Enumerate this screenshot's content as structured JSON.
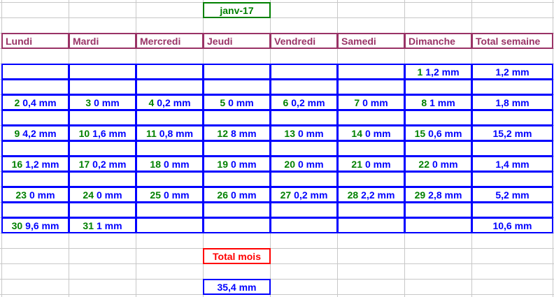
{
  "month": "janv-17",
  "headers": [
    "Lundi",
    "Mardi",
    "Mercredi",
    "Jeudi",
    "Vendredi",
    "Samedi",
    "Dimanche",
    "Total semaine"
  ],
  "weeks": [
    {
      "days": [
        null,
        null,
        null,
        null,
        null,
        null,
        {
          "day": "1",
          "value": "1,2 mm"
        }
      ],
      "total": "1,2 mm"
    },
    {
      "days": [
        {
          "day": "2",
          "value": "0,4 mm"
        },
        {
          "day": "3",
          "value": "0 mm"
        },
        {
          "day": "4",
          "value": "0,2 mm"
        },
        {
          "day": "5",
          "value": "0 mm"
        },
        {
          "day": "6",
          "value": "0,2 mm"
        },
        {
          "day": "7",
          "value": "0 mm"
        },
        {
          "day": "8",
          "value": "1 mm"
        }
      ],
      "total": "1,8 mm"
    },
    {
      "days": [
        {
          "day": "9",
          "value": "4,2 mm"
        },
        {
          "day": "10",
          "value": "1,6 mm"
        },
        {
          "day": "11",
          "value": "0,8 mm"
        },
        {
          "day": "12",
          "value": "8 mm"
        },
        {
          "day": "13",
          "value": "0 mm"
        },
        {
          "day": "14",
          "value": "0 mm"
        },
        {
          "day": "15",
          "value": "0,6 mm"
        }
      ],
      "total": "15,2 mm"
    },
    {
      "days": [
        {
          "day": "16",
          "value": "1,2 mm"
        },
        {
          "day": "17",
          "value": "0,2 mm"
        },
        {
          "day": "18",
          "value": "0 mm"
        },
        {
          "day": "19",
          "value": "0 mm"
        },
        {
          "day": "20",
          "value": "0 mm"
        },
        {
          "day": "21",
          "value": "0 mm"
        },
        {
          "day": "22",
          "value": "0 mm"
        }
      ],
      "total": "1,4 mm"
    },
    {
      "days": [
        {
          "day": "23",
          "value": "0 mm"
        },
        {
          "day": "24",
          "value": "0 mm"
        },
        {
          "day": "25",
          "value": "0 mm"
        },
        {
          "day": "26",
          "value": "0 mm"
        },
        {
          "day": "27",
          "value": "0,2 mm"
        },
        {
          "day": "28",
          "value": "2,2 mm"
        },
        {
          "day": "29",
          "value": "2,8 mm"
        }
      ],
      "total": "5,2 mm"
    },
    {
      "days": [
        {
          "day": "30",
          "value": "9,6 mm"
        },
        {
          "day": "31",
          "value": "1 mm"
        },
        null,
        null,
        null,
        null,
        null
      ],
      "total": "10,6 mm"
    }
  ],
  "total_label": "Total mois",
  "total_value": "35,4 mm",
  "colors": {
    "header": "#993366",
    "data": "#0000ff",
    "day": "#008000",
    "total": "#ff0000",
    "month": "#008000"
  }
}
